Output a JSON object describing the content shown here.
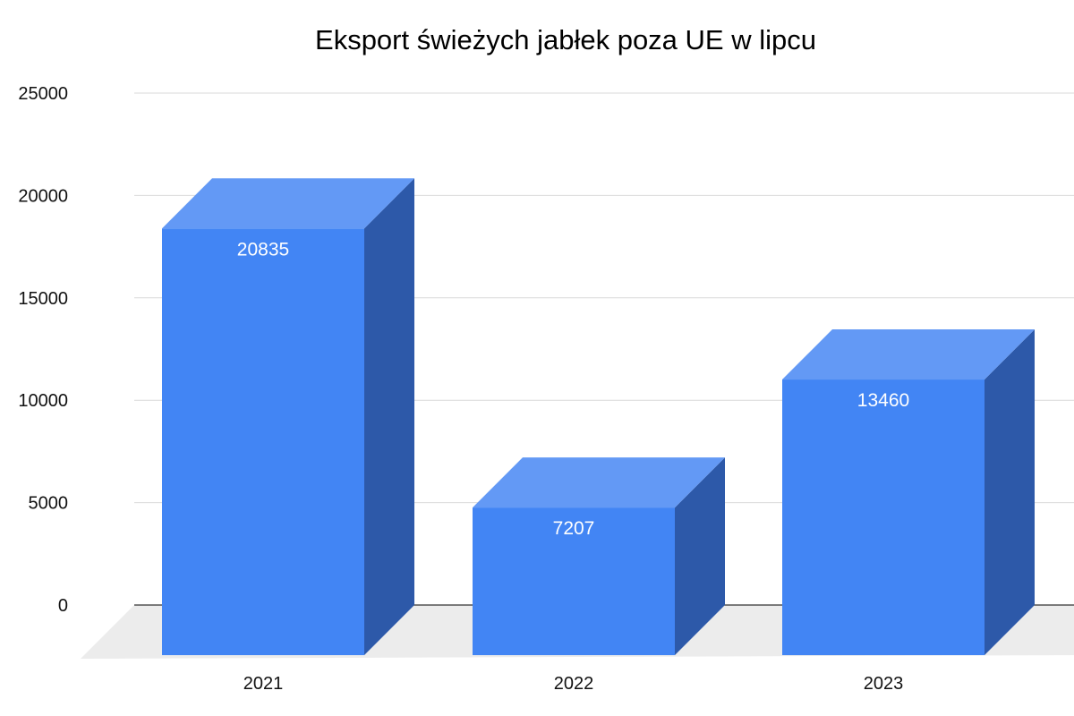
{
  "chart_data": {
    "type": "bar",
    "style": "3d-column",
    "title": "Eksport świeżych jabłek poza UE w lipcu",
    "xlabel": "",
    "ylabel": "",
    "categories": [
      "2021",
      "2022",
      "2023"
    ],
    "values": [
      20835,
      7207,
      13460
    ],
    "data_labels": [
      "20835",
      "7207",
      "13460"
    ],
    "ylim": [
      0,
      25000
    ],
    "y_ticks": [
      0,
      5000,
      10000,
      15000,
      20000,
      25000
    ],
    "y_tick_labels": [
      "0",
      "5000",
      "10000",
      "15000",
      "20000",
      "25000"
    ],
    "grid": true,
    "legend": "none"
  },
  "colors": {
    "bar_front": "#4285f4",
    "bar_top": "#6399f5",
    "bar_side": "#2d59a9",
    "floor": "#ececec",
    "gridline": "#d9d9d9",
    "baseline": "#333333",
    "text": "#111111",
    "data_label": "#ffffff"
  }
}
